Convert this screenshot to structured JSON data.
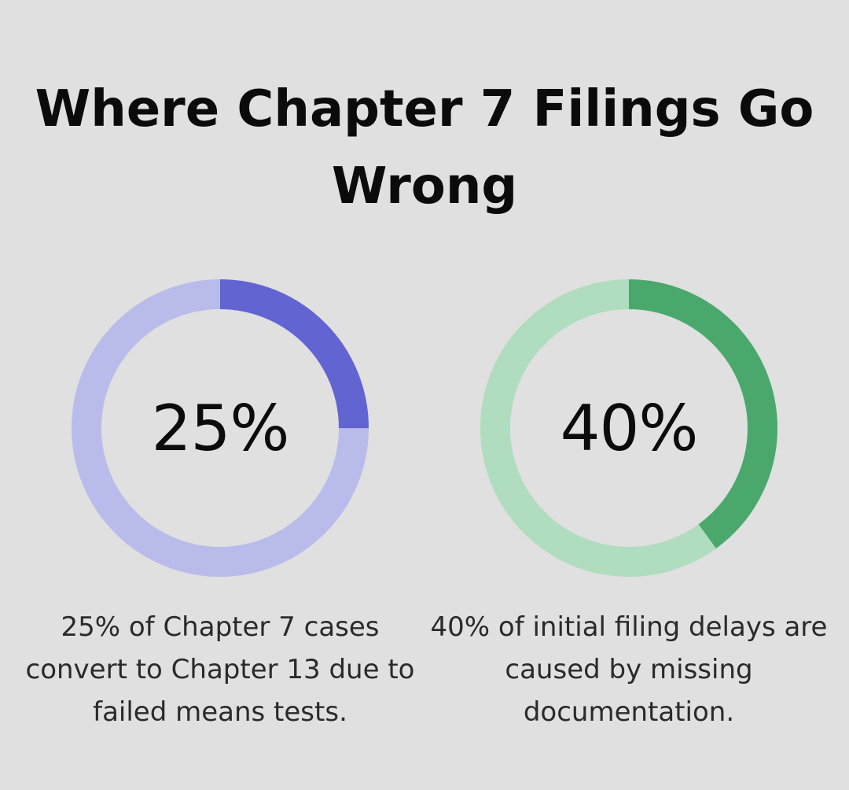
{
  "title": "Where Chapter 7 Filings Go Wrong",
  "stats": [
    {
      "value_label": "25%",
      "caption": "25% of Chapter 7 cases convert to Chapter 13 due to failed means tests.",
      "color": "#6264d2",
      "track_color": "#b9bceb"
    },
    {
      "value_label": "40%",
      "caption": "40% of initial filing delays are caused by missing documentation.",
      "color": "#4ba86c",
      "track_color": "#b0dcc0"
    }
  ],
  "chart_data": [
    {
      "type": "pie",
      "title": "",
      "values": [
        25,
        75
      ],
      "unit": "%",
      "center_label": "25%",
      "caption": "25% of Chapter 7 cases convert to Chapter 13 due to failed means tests."
    },
    {
      "type": "pie",
      "title": "",
      "values": [
        40,
        60
      ],
      "unit": "%",
      "center_label": "40%",
      "caption": "40% of initial filing delays are caused by missing documentation."
    }
  ]
}
